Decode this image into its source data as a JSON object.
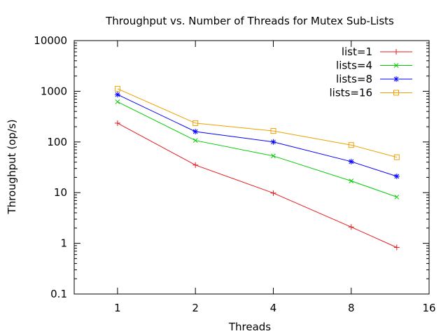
{
  "chart_data": {
    "type": "line",
    "title": "Throughput vs. Number of Threads for Mutex Sub-Lists",
    "xlabel": "Threads",
    "ylabel": "Throughput (op/s)",
    "x_scale": "log2",
    "y_scale": "log10",
    "xlim": [
      0.68,
      16
    ],
    "ylim": [
      0.1,
      10000
    ],
    "x_ticks": [
      1,
      2,
      4,
      8,
      16
    ],
    "x_tick_labels": [
      "1",
      "2",
      "4",
      "8",
      "16"
    ],
    "y_ticks": [
      0.1,
      1,
      10,
      100,
      1000,
      10000
    ],
    "y_tick_labels": [
      "0.1",
      "1",
      "10",
      "100",
      "1000",
      "10000"
    ],
    "x": [
      1,
      2,
      4,
      8,
      12
    ],
    "legend_position": "top-right",
    "grid": false,
    "series": [
      {
        "name": "list=1",
        "color": "#e41a1c",
        "marker": "plus",
        "values": [
          235,
          35,
          9.8,
          2.1,
          0.83
        ]
      },
      {
        "name": "lists=4",
        "color": "#00cc00",
        "marker": "cross",
        "values": [
          620,
          107,
          53,
          17,
          8.2
        ]
      },
      {
        "name": "lists=8",
        "color": "#0000ff",
        "marker": "star",
        "values": [
          860,
          160,
          100,
          41,
          21
        ]
      },
      {
        "name": "lists=16",
        "color": "#f0a000",
        "marker": "square",
        "values": [
          1120,
          235,
          165,
          87,
          50
        ]
      }
    ]
  }
}
